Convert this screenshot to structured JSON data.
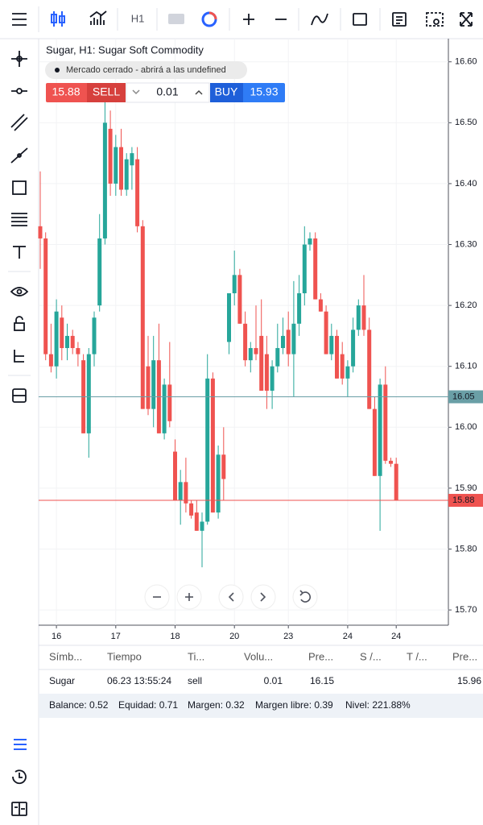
{
  "toolbar": {
    "interval": "H1"
  },
  "chart_data": {
    "type": "candlestick",
    "title": "Sugar, H1: Sugar Soft Commodity",
    "categories": [
      null,
      null,
      null,
      "16",
      null,
      null,
      null,
      null,
      null,
      null,
      null,
      null,
      null,
      null,
      "17",
      null,
      null,
      null,
      null,
      null,
      null,
      null,
      null,
      null,
      null,
      "18",
      null,
      null,
      null,
      null,
      null,
      null,
      null,
      null,
      null,
      null,
      "20",
      null,
      null,
      null,
      null,
      null,
      null,
      null,
      null,
      null,
      "23",
      null,
      null,
      null,
      null,
      null,
      null,
      null,
      null,
      null,
      null,
      "24",
      null,
      null,
      null,
      null,
      null,
      null,
      null,
      null,
      "24"
    ],
    "open": [
      16.33,
      16.31,
      16.12,
      16.1,
      16.18,
      16.13,
      16.15,
      16.13,
      16.11,
      15.99,
      16.12,
      16.2,
      16.31,
      16.49,
      16.4,
      16.46,
      16.39,
      16.43,
      16.44,
      16.33,
      16.1,
      16.03,
      16.11,
      15.99,
      16.07,
      15.96,
      15.88,
      15.91,
      15.875,
      15.86,
      15.83,
      15.845,
      16.08,
      15.86,
      15.955,
      16.14,
      16.22,
      16.25,
      16.17,
      16.11,
      16.13,
      16.15,
      16.12,
      16.06,
      16.1,
      16.13,
      16.16,
      16.12,
      16.17,
      16.22,
      16.3,
      16.31,
      16.21,
      16.19,
      16.12,
      16.15,
      16.12,
      16.08,
      16.1,
      16.16,
      16.2,
      16.16,
      16.03,
      15.92,
      16.07,
      15.945,
      15.94
    ],
    "high": [
      16.42,
      16.32,
      16.17,
      16.21,
      16.2,
      16.17,
      16.16,
      16.14,
      16.12,
      16.13,
      16.19,
      16.35,
      16.56,
      16.52,
      16.48,
      16.49,
      16.45,
      16.46,
      16.46,
      16.34,
      16.15,
      16.15,
      16.17,
      16.08,
      16.14,
      15.98,
      15.93,
      15.95,
      15.88,
      15.88,
      15.86,
      16.12,
      16.09,
      15.97,
      16.0,
      16.22,
      16.29,
      16.26,
      16.19,
      16.14,
      16.2,
      16.21,
      16.15,
      16.11,
      16.17,
      16.18,
      16.19,
      16.24,
      16.25,
      16.33,
      16.32,
      16.32,
      16.22,
      16.2,
      16.17,
      16.16,
      16.14,
      16.11,
      16.18,
      16.21,
      16.25,
      16.18,
      16.05,
      16.08,
      16.1,
      15.95,
      15.95
    ],
    "low": [
      16.26,
      16.11,
      16.09,
      16.08,
      16.11,
      16.11,
      16.12,
      16.1,
      15.99,
      15.95,
      16.1,
      16.19,
      16.3,
      16.38,
      16.38,
      16.38,
      16.38,
      16.39,
      16.32,
      16.03,
      16.02,
      16.0,
      15.99,
      15.98,
      16.0,
      15.88,
      15.84,
      15.86,
      15.85,
      15.83,
      15.77,
      15.84,
      15.86,
      15.85,
      15.88,
      16.12,
      16.2,
      16.17,
      16.1,
      16.09,
      16.11,
      16.06,
      16.03,
      16.03,
      16.09,
      16.12,
      16.1,
      16.05,
      16.15,
      16.2,
      16.29,
      16.21,
      16.19,
      16.12,
      16.11,
      16.08,
      16.07,
      16.05,
      16.09,
      16.15,
      16.15,
      16.03,
      15.92,
      15.83,
      15.94,
      15.935,
      15.88
    ],
    "close": [
      16.31,
      16.12,
      16.1,
      16.19,
      16.13,
      16.15,
      16.13,
      16.12,
      15.99,
      16.12,
      16.18,
      16.31,
      16.5,
      16.4,
      16.46,
      16.39,
      16.44,
      16.45,
      16.33,
      16.03,
      16.03,
      16.11,
      15.99,
      16.07,
      16.01,
      15.88,
      15.91,
      15.875,
      15.855,
      15.83,
      15.845,
      16.08,
      15.86,
      15.955,
      15.915,
      16.22,
      16.25,
      16.17,
      16.11,
      16.13,
      16.12,
      16.06,
      16.06,
      16.1,
      16.13,
      16.15,
      16.12,
      16.17,
      16.22,
      16.3,
      16.31,
      16.21,
      16.19,
      16.12,
      16.15,
      16.08,
      16.08,
      16.1,
      16.16,
      16.2,
      16.16,
      16.03,
      15.92,
      16.07,
      15.945,
      15.94,
      15.88
    ],
    "up_color": "#26a69a",
    "down_color": "#ef5350",
    "ylim": [
      15.675,
      16.638
    ],
    "yticks": [
      {
        "value": 15.7,
        "label": "15.70"
      },
      {
        "value": 15.8,
        "label": "15.80"
      },
      {
        "value": 15.9,
        "label": "15.90"
      },
      {
        "value": 16.0,
        "label": "16.00"
      },
      {
        "value": 16.1,
        "label": "16.10"
      },
      {
        "value": 16.2,
        "label": "16.20"
      },
      {
        "value": 16.3,
        "label": "16.30"
      },
      {
        "value": 16.4,
        "label": "16.40"
      },
      {
        "value": 16.5,
        "label": "16.50"
      },
      {
        "value": 16.6,
        "label": "16.60"
      }
    ],
    "grid": true,
    "price_lines": [
      {
        "value": 16.05,
        "color": "#6a9fa6"
      },
      {
        "value": 15.88,
        "color": "#ef5350"
      }
    ]
  },
  "market_status": "Mercado cerrado - abrirá a las undefined",
  "trade_panel": {
    "sell_price": "15.88",
    "sell_label": "SELL",
    "volume": "0.01",
    "buy_label": "BUY",
    "buy_price": "15.93"
  },
  "positions": {
    "columns": [
      "Símb...",
      "Tiempo",
      "Ti...",
      "Volu...",
      "Pre...",
      "S /...",
      "T /...",
      "Pre..."
    ],
    "rows": [
      {
        "symbol": "Sugar",
        "time": "06.23 13:55:24",
        "type": "sell",
        "volume": "0.01",
        "open_price": "16.15",
        "price": "15.96"
      }
    ]
  },
  "account": [
    "Balance: 0.52",
    "Equidad: 0.71",
    "Margen: 0.32",
    "Margen libre: 0.39",
    "Nivel: 221.88%"
  ]
}
